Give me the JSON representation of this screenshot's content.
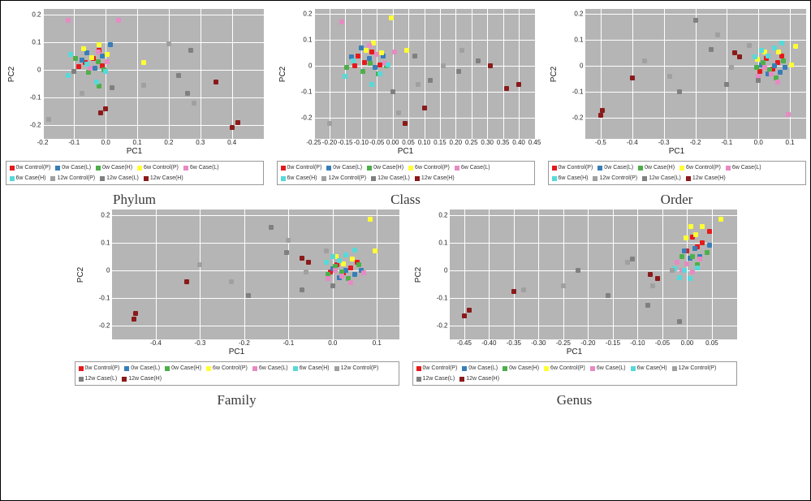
{
  "frame_border_color": "#000000",
  "background_color": "#ffffff",
  "plot_bg_color": "#b5b5b5",
  "gridline_color": "#ffffff",
  "axis_label_x": "PC1",
  "axis_label_y": "PC2",
  "legend_items": [
    {
      "label": "0w Control(P)",
      "color": "#e41a1c"
    },
    {
      "label": "0w Case(L)",
      "color": "#377eb8"
    },
    {
      "label": "0w Case(H)",
      "color": "#4daf4a"
    },
    {
      "label": "6w Control(P)",
      "color": "#ffff33"
    },
    {
      "label": "6w Case(L)",
      "color": "#e78ac3"
    },
    {
      "label": "6w Case(H)",
      "color": "#57d9d9"
    },
    {
      "label": "12w Control(P)",
      "color": "#a0a0a0"
    },
    {
      "label": "12w Case(L)",
      "color": "#808080"
    },
    {
      "label": "12w Case(H)",
      "color": "#8b1a1a"
    }
  ],
  "panels": [
    {
      "id": "phylum",
      "caption": "Phylum",
      "xlim": [
        -0.2,
        0.5
      ],
      "ylim": [
        -0.25,
        0.22
      ],
      "xticks": [
        -0.2,
        -0.1,
        0.0,
        0.1,
        0.2,
        0.3,
        0.4
      ],
      "yticks": [
        -0.2,
        -0.1,
        0.0,
        0.1,
        0.2
      ],
      "ytick0_label": "0",
      "points": [
        [
          -0.065,
          0.025,
          0
        ],
        [
          -0.04,
          0.04,
          0
        ],
        [
          -0.02,
          0.07,
          0
        ],
        [
          -0.01,
          0.015,
          0
        ],
        [
          -0.085,
          0.01,
          0
        ],
        [
          -0.06,
          0.06,
          1
        ],
        [
          -0.035,
          0.005,
          1
        ],
        [
          -0.01,
          0.05,
          1
        ],
        [
          0.015,
          0.09,
          1
        ],
        [
          -0.075,
          0.035,
          1
        ],
        [
          -0.055,
          -0.01,
          2
        ],
        [
          -0.025,
          0.03,
          2
        ],
        [
          -0.005,
          0.0,
          2
        ],
        [
          -0.095,
          0.04,
          2
        ],
        [
          -0.02,
          -0.06,
          2
        ],
        [
          -0.045,
          0.045,
          3
        ],
        [
          -0.02,
          0.09,
          3
        ],
        [
          0.005,
          0.055,
          3
        ],
        [
          0.12,
          0.025,
          3
        ],
        [
          -0.07,
          0.075,
          3
        ],
        [
          -0.12,
          0.18,
          4
        ],
        [
          0.04,
          0.18,
          4
        ],
        [
          -0.05,
          0.005,
          4
        ],
        [
          -0.025,
          0.065,
          4
        ],
        [
          0.005,
          0.03,
          4
        ],
        [
          -0.12,
          -0.02,
          5
        ],
        [
          -0.03,
          -0.045,
          5
        ],
        [
          0.0,
          -0.005,
          5
        ],
        [
          -0.06,
          0.02,
          5
        ],
        [
          -0.11,
          0.055,
          5
        ],
        [
          -0.18,
          -0.18,
          6
        ],
        [
          0.2,
          0.095,
          6
        ],
        [
          0.12,
          -0.055,
          6
        ],
        [
          0.28,
          -0.12,
          6
        ],
        [
          -0.075,
          -0.085,
          6
        ],
        [
          -0.1,
          -0.005,
          7
        ],
        [
          0.27,
          0.07,
          7
        ],
        [
          0.26,
          -0.085,
          7
        ],
        [
          0.02,
          -0.065,
          7
        ],
        [
          0.23,
          -0.02,
          7
        ],
        [
          0.42,
          -0.19,
          8
        ],
        [
          0.4,
          -0.21,
          8
        ],
        [
          0.0,
          -0.14,
          8
        ],
        [
          -0.015,
          -0.155,
          8
        ],
        [
          0.35,
          -0.045,
          8
        ]
      ]
    },
    {
      "id": "class",
      "caption": "Class",
      "xlim": [
        -0.25,
        0.45
      ],
      "ylim": [
        -0.28,
        0.22
      ],
      "xticks": [
        -0.25,
        -0.2,
        -0.15,
        -0.1,
        -0.05,
        0.0,
        0.05,
        0.1,
        0.15,
        0.2,
        0.25,
        0.3,
        0.35,
        0.4,
        0.45
      ],
      "yticks": [
        -0.2,
        -0.1,
        0.0,
        0.1,
        0.2
      ],
      "ytick0_label": "0",
      "points": [
        [
          -0.11,
          0.04,
          0
        ],
        [
          -0.09,
          0.015,
          0
        ],
        [
          -0.065,
          0.055,
          0
        ],
        [
          -0.04,
          0.005,
          0
        ],
        [
          -0.12,
          0.0,
          0
        ],
        [
          -0.1,
          0.07,
          1
        ],
        [
          -0.075,
          0.03,
          1
        ],
        [
          -0.055,
          -0.005,
          1
        ],
        [
          -0.03,
          0.04,
          1
        ],
        [
          -0.13,
          0.035,
          1
        ],
        [
          -0.095,
          -0.02,
          2
        ],
        [
          -0.07,
          0.01,
          2
        ],
        [
          -0.045,
          -0.03,
          2
        ],
        [
          -0.02,
          0.0,
          2
        ],
        [
          -0.145,
          -0.005,
          2
        ],
        [
          -0.085,
          0.06,
          3
        ],
        [
          -0.06,
          0.09,
          3
        ],
        [
          -0.035,
          0.05,
          3
        ],
        [
          0.045,
          0.06,
          3
        ],
        [
          -0.005,
          0.185,
          3
        ],
        [
          -0.16,
          0.17,
          4
        ],
        [
          -0.075,
          0.08,
          4
        ],
        [
          -0.05,
          0.045,
          4
        ],
        [
          -0.025,
          0.01,
          4
        ],
        [
          0.005,
          0.055,
          4
        ],
        [
          -0.15,
          -0.04,
          5
        ],
        [
          -0.065,
          -0.07,
          5
        ],
        [
          -0.04,
          -0.03,
          5
        ],
        [
          -0.015,
          0.005,
          5
        ],
        [
          -0.125,
          0.02,
          5
        ],
        [
          -0.2,
          -0.22,
          6
        ],
        [
          0.08,
          -0.07,
          6
        ],
        [
          0.16,
          0.0,
          6
        ],
        [
          0.22,
          0.06,
          6
        ],
        [
          0.02,
          -0.18,
          6
        ],
        [
          -0.0,
          -0.1,
          7
        ],
        [
          0.12,
          -0.055,
          7
        ],
        [
          0.21,
          -0.02,
          7
        ],
        [
          0.27,
          0.02,
          7
        ],
        [
          0.07,
          0.04,
          7
        ],
        [
          0.36,
          -0.085,
          8
        ],
        [
          0.4,
          -0.07,
          8
        ],
        [
          0.1,
          -0.16,
          8
        ],
        [
          0.04,
          -0.22,
          8
        ],
        [
          0.31,
          0.0,
          8
        ]
      ]
    },
    {
      "id": "order",
      "caption": "Order",
      "xlim": [
        -0.55,
        0.15
      ],
      "ylim": [
        -0.28,
        0.22
      ],
      "xticks": [
        -0.5,
        -0.4,
        -0.3,
        -0.2,
        -0.1,
        0.0,
        0.1
      ],
      "yticks": [
        -0.2,
        -0.1,
        0.0,
        0.1,
        0.2
      ],
      "ytick0_label": "0",
      "points": [
        [
          0.06,
          0.015,
          0
        ],
        [
          0.045,
          -0.01,
          0
        ],
        [
          0.025,
          0.03,
          0
        ],
        [
          0.005,
          -0.02,
          0
        ],
        [
          0.075,
          0.04,
          0
        ],
        [
          0.07,
          -0.025,
          1
        ],
        [
          0.05,
          0.0,
          1
        ],
        [
          0.03,
          -0.03,
          1
        ],
        [
          0.01,
          0.005,
          1
        ],
        [
          0.085,
          -0.005,
          1
        ],
        [
          0.055,
          -0.045,
          2
        ],
        [
          0.035,
          -0.015,
          2
        ],
        [
          0.015,
          0.015,
          2
        ],
        [
          -0.005,
          -0.005,
          2
        ],
        [
          0.08,
          0.02,
          2
        ],
        [
          0.065,
          0.055,
          3
        ],
        [
          0.105,
          0.005,
          3
        ],
        [
          0.02,
          0.055,
          3
        ],
        [
          -0.002,
          0.025,
          3
        ],
        [
          0.118,
          0.075,
          3
        ],
        [
          0.06,
          -0.06,
          4
        ],
        [
          0.04,
          -0.03,
          4
        ],
        [
          0.02,
          -0.005,
          4
        ],
        [
          0.0,
          -0.04,
          4
        ],
        [
          0.095,
          -0.185,
          4
        ],
        [
          0.05,
          0.07,
          5
        ],
        [
          0.03,
          0.04,
          5
        ],
        [
          0.01,
          0.06,
          5
        ],
        [
          -0.01,
          0.035,
          5
        ],
        [
          0.075,
          0.09,
          5
        ],
        [
          -0.28,
          -0.04,
          6
        ],
        [
          -0.13,
          0.12,
          6
        ],
        [
          -0.085,
          -0.005,
          6
        ],
        [
          -0.03,
          0.08,
          6
        ],
        [
          -0.36,
          0.02,
          6
        ],
        [
          -0.2,
          0.175,
          7
        ],
        [
          -0.1,
          -0.07,
          7
        ],
        [
          0.0,
          -0.055,
          7
        ],
        [
          -0.25,
          -0.1,
          7
        ],
        [
          -0.15,
          0.065,
          7
        ],
        [
          -0.495,
          -0.17,
          8
        ],
        [
          -0.5,
          -0.19,
          8
        ],
        [
          -0.06,
          0.035,
          8
        ],
        [
          -0.075,
          0.05,
          8
        ],
        [
          -0.4,
          -0.045,
          8
        ]
      ]
    },
    {
      "id": "family",
      "caption": "Family",
      "xlim": [
        -0.5,
        0.15
      ],
      "ylim": [
        -0.25,
        0.22
      ],
      "xticks": [
        -0.4,
        -0.3,
        -0.2,
        -0.1,
        0.0,
        0.1
      ],
      "yticks": [
        -0.2,
        -0.1,
        0.0,
        0.1,
        0.2
      ],
      "ytick0_label": "0",
      "points": [
        [
          0.04,
          0.01,
          0
        ],
        [
          0.025,
          -0.01,
          0
        ],
        [
          0.01,
          0.02,
          0
        ],
        [
          -0.005,
          -0.005,
          0
        ],
        [
          0.055,
          0.03,
          0
        ],
        [
          0.05,
          -0.015,
          1
        ],
        [
          0.03,
          -0.0,
          1
        ],
        [
          0.015,
          -0.025,
          1
        ],
        [
          0.0,
          0.005,
          1
        ],
        [
          0.065,
          0.0,
          1
        ],
        [
          0.035,
          -0.03,
          2
        ],
        [
          0.02,
          -0.005,
          2
        ],
        [
          0.005,
          0.015,
          2
        ],
        [
          -0.01,
          -0.015,
          2
        ],
        [
          0.06,
          0.02,
          2
        ],
        [
          0.045,
          0.04,
          3
        ],
        [
          0.025,
          0.025,
          3
        ],
        [
          0.008,
          0.05,
          3
        ],
        [
          0.085,
          0.185,
          3
        ],
        [
          0.095,
          0.07,
          3
        ],
        [
          0.04,
          -0.045,
          4
        ],
        [
          0.02,
          -0.02,
          4
        ],
        [
          0.005,
          -0.0,
          4
        ],
        [
          -0.01,
          -0.03,
          4
        ],
        [
          0.07,
          -0.01,
          4
        ],
        [
          0.03,
          0.055,
          5
        ],
        [
          0.015,
          0.035,
          5
        ],
        [
          0.0,
          0.05,
          5
        ],
        [
          -0.015,
          0.03,
          5
        ],
        [
          0.05,
          0.075,
          5
        ],
        [
          -0.23,
          -0.04,
          6
        ],
        [
          -0.1,
          0.11,
          6
        ],
        [
          -0.06,
          -0.005,
          6
        ],
        [
          -0.015,
          0.07,
          6
        ],
        [
          -0.3,
          0.02,
          6
        ],
        [
          -0.14,
          0.155,
          7
        ],
        [
          -0.07,
          -0.07,
          7
        ],
        [
          0.0,
          -0.055,
          7
        ],
        [
          -0.19,
          -0.09,
          7
        ],
        [
          -0.105,
          0.065,
          7
        ],
        [
          -0.445,
          -0.155,
          8
        ],
        [
          -0.45,
          -0.175,
          8
        ],
        [
          -0.055,
          0.03,
          8
        ],
        [
          -0.07,
          0.045,
          8
        ],
        [
          -0.33,
          -0.04,
          8
        ]
      ]
    },
    {
      "id": "genus",
      "caption": "Genus",
      "xlim": [
        -0.48,
        0.1
      ],
      "ylim": [
        -0.25,
        0.22
      ],
      "xticks": [
        -0.45,
        -0.4,
        -0.35,
        -0.3,
        -0.25,
        -0.2,
        -0.15,
        -0.1,
        -0.05,
        0.0,
        0.05
      ],
      "yticks": [
        -0.2,
        -0.1,
        0.0,
        0.1,
        0.2
      ],
      "ytick0_label": "0",
      "points": [
        [
          0.03,
          0.1,
          0
        ],
        [
          0.02,
          0.085,
          0
        ],
        [
          0.01,
          0.12,
          0
        ],
        [
          0.0,
          0.07,
          0
        ],
        [
          0.045,
          0.14,
          0
        ],
        [
          0.025,
          0.05,
          1
        ],
        [
          0.015,
          0.08,
          1
        ],
        [
          0.005,
          0.045,
          1
        ],
        [
          -0.005,
          0.07,
          1
        ],
        [
          0.045,
          0.09,
          1
        ],
        [
          0.02,
          0.02,
          2
        ],
        [
          0.01,
          0.05,
          2
        ],
        [
          0.0,
          0.025,
          2
        ],
        [
          -0.01,
          0.05,
          2
        ],
        [
          0.04,
          0.065,
          2
        ],
        [
          0.03,
          0.16,
          3
        ],
        [
          0.018,
          0.13,
          3
        ],
        [
          0.008,
          0.16,
          3
        ],
        [
          -0.002,
          0.118,
          3
        ],
        [
          0.068,
          0.185,
          3
        ],
        [
          0.01,
          -0.005,
          4
        ],
        [
          0.0,
          0.025,
          4
        ],
        [
          -0.01,
          0.0,
          4
        ],
        [
          -0.02,
          0.03,
          4
        ],
        [
          0.025,
          0.04,
          4
        ],
        [
          0.005,
          -0.03,
          5
        ],
        [
          -0.005,
          0.0,
          5
        ],
        [
          -0.015,
          -0.025,
          5
        ],
        [
          -0.025,
          0.005,
          5
        ],
        [
          0.02,
          0.01,
          5
        ],
        [
          -0.25,
          -0.055,
          6
        ],
        [
          -0.12,
          0.03,
          6
        ],
        [
          -0.07,
          -0.055,
          6
        ],
        [
          -0.03,
          0.0,
          6
        ],
        [
          -0.33,
          -0.07,
          6
        ],
        [
          -0.16,
          -0.09,
          7
        ],
        [
          -0.08,
          -0.125,
          7
        ],
        [
          -0.015,
          -0.185,
          7
        ],
        [
          -0.22,
          -0.0,
          7
        ],
        [
          -0.11,
          0.04,
          7
        ],
        [
          -0.44,
          -0.145,
          8
        ],
        [
          -0.45,
          -0.165,
          8
        ],
        [
          -0.06,
          -0.03,
          8
        ],
        [
          -0.075,
          -0.015,
          8
        ],
        [
          -0.35,
          -0.075,
          8
        ]
      ]
    }
  ]
}
